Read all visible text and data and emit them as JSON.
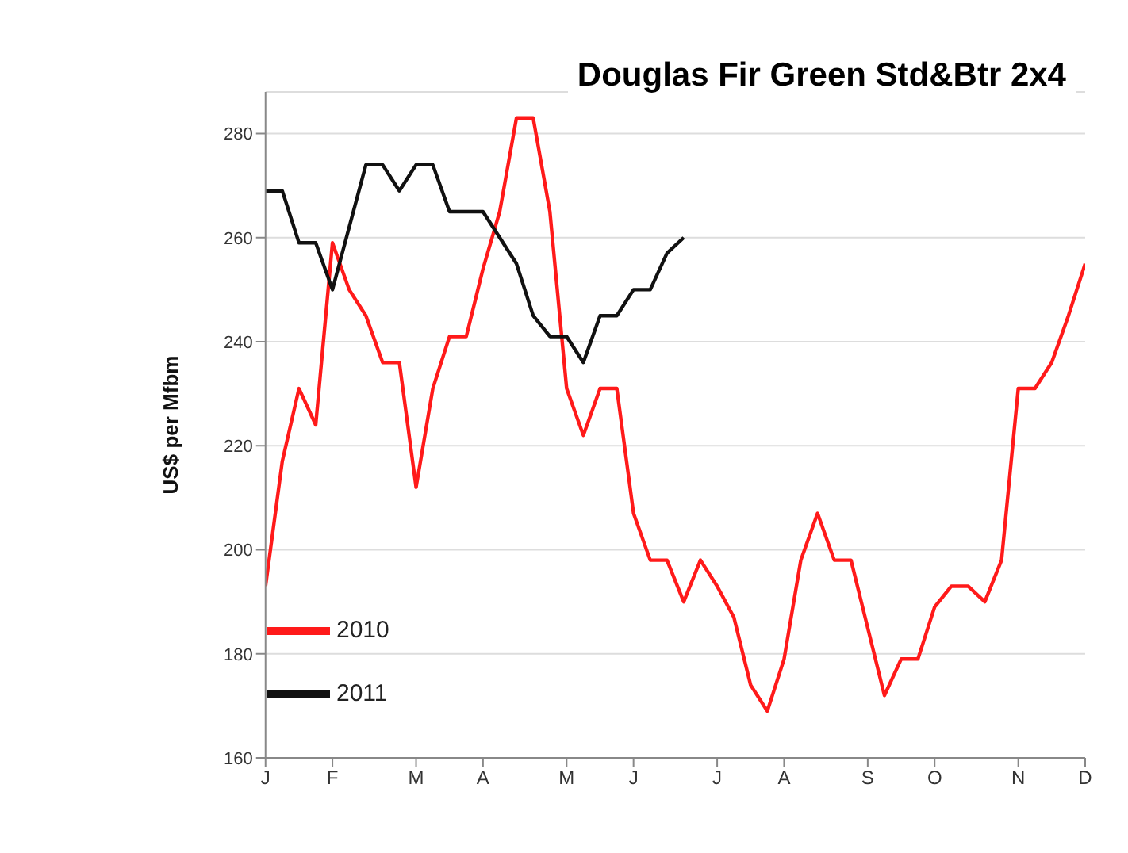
{
  "chart_data": {
    "type": "line",
    "title": "Douglas Fir Green Std&Btr 2x4",
    "ylabel": "US$ per Mfbm",
    "categories": [
      "J",
      null,
      null,
      null,
      "F",
      null,
      null,
      null,
      null,
      "M",
      null,
      null,
      null,
      "A",
      null,
      null,
      null,
      null,
      "M",
      null,
      null,
      null,
      "J",
      null,
      null,
      null,
      null,
      "J",
      null,
      null,
      null,
      "A",
      null,
      null,
      null,
      null,
      "S",
      null,
      null,
      null,
      "O",
      null,
      null,
      null,
      null,
      "N",
      null,
      null,
      null,
      "D"
    ],
    "ylim": [
      160,
      288
    ],
    "yticks": [
      160,
      180,
      200,
      220,
      240,
      260,
      280
    ],
    "grid": "y",
    "legend": "bottom left",
    "marker": "none",
    "line_style": "solid",
    "series": [
      {
        "name": "2010",
        "color": "#ff1a1a",
        "values": [
          193,
          217,
          231,
          224,
          259,
          250,
          245,
          236,
          236,
          212,
          231,
          241,
          241,
          254,
          265,
          283,
          283,
          265,
          231,
          222,
          231,
          231,
          207,
          198,
          198,
          190,
          198,
          193,
          187,
          174,
          169,
          179,
          198,
          207,
          198,
          198,
          185,
          172,
          179,
          179,
          189,
          193,
          193,
          190,
          198,
          231,
          231,
          236,
          245,
          255
        ]
      },
      {
        "name": "2011",
        "color": "#111111",
        "values": [
          269,
          269,
          259,
          259,
          250,
          262,
          274,
          274,
          269,
          274,
          274,
          265,
          265,
          265,
          260,
          255,
          245,
          241,
          241,
          236,
          245,
          245,
          250,
          250,
          257,
          260,
          null,
          null,
          null,
          null,
          null,
          null,
          null,
          null,
          null,
          null,
          null,
          null,
          null,
          null,
          null,
          null,
          null,
          null,
          null,
          null,
          null,
          null,
          null,
          null
        ]
      }
    ]
  }
}
